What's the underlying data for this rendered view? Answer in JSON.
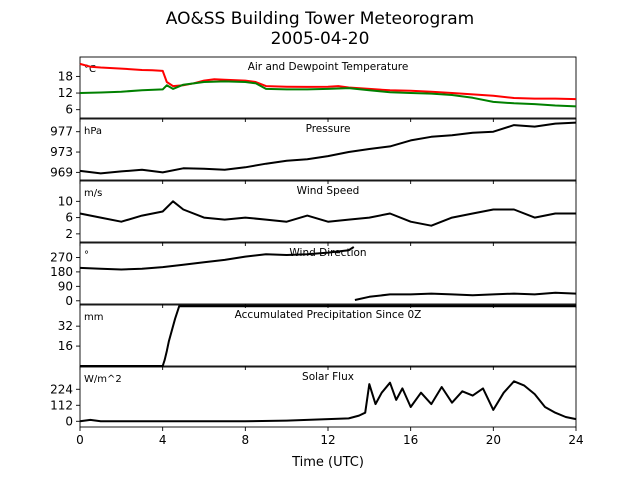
{
  "chart_data": {
    "type": "line",
    "title": "AO&SS Building Tower Meteorogram",
    "subtitle": "2005-04-20",
    "xlabel": "Time (UTC)",
    "xlim": [
      0,
      24
    ],
    "xticks": [
      0,
      4,
      8,
      12,
      16,
      20,
      24
    ],
    "colors": {
      "temperature": "#ff0000",
      "dewpoint": "#008000",
      "default": "#000000"
    },
    "panels": [
      {
        "title": "Air and Dewpoint Temperature",
        "unit": "°C",
        "ylim": [
          3,
          25
        ],
        "yticks": [
          6,
          12,
          18
        ],
        "series": [
          {
            "color": "#ff0000",
            "x": [
              0,
              0.5,
              1,
              2,
              3,
              3.5,
              4,
              4.2,
              4.5,
              5,
              5.5,
              6,
              6.5,
              7,
              8,
              8.5,
              9,
              10,
              11,
              12,
              12.5,
              13,
              14,
              15,
              16,
              17,
              18,
              19,
              20,
              21,
              22,
              23,
              24
            ],
            "y": [
              22.5,
              21.5,
              21.2,
              20.8,
              20.3,
              20.2,
              20.0,
              16.0,
              14.5,
              14.8,
              15.5,
              16.5,
              17.0,
              16.8,
              16.5,
              16.0,
              14.5,
              14.3,
              14.2,
              14.3,
              14.5,
              14.0,
              13.5,
              13.0,
              12.8,
              12.5,
              12.0,
              11.5,
              11.0,
              10.2,
              10.0,
              10.0,
              9.8
            ]
          },
          {
            "color": "#008000",
            "x": [
              0,
              1,
              2,
              3,
              4,
              4.2,
              4.5,
              5,
              6,
              7,
              8,
              8.5,
              9,
              10,
              11,
              12,
              13,
              14,
              15,
              16,
              17,
              18,
              19,
              20,
              21,
              22,
              23,
              24
            ],
            "y": [
              12.0,
              12.2,
              12.5,
              13.0,
              13.3,
              14.8,
              13.5,
              15.0,
              16.0,
              16.2,
              16.0,
              15.5,
              13.5,
              13.3,
              13.3,
              13.5,
              13.8,
              13.0,
              12.3,
              12.0,
              11.8,
              11.3,
              10.3,
              8.8,
              8.3,
              8.0,
              7.5,
              7.2
            ]
          }
        ]
      },
      {
        "title": "Pressure",
        "unit": "hPa",
        "ylim": [
          967.5,
          979.5
        ],
        "yticks": [
          969,
          973,
          977
        ],
        "series": [
          {
            "color": "#000000",
            "x": [
              0,
              1,
              2,
              3,
              4,
              5,
              6,
              7,
              8,
              9,
              10,
              11,
              12,
              13,
              14,
              15,
              16,
              17,
              18,
              19,
              20,
              21,
              22,
              23,
              24
            ],
            "y": [
              969.3,
              968.8,
              969.2,
              969.5,
              969.0,
              969.8,
              969.7,
              969.5,
              970.0,
              970.7,
              971.3,
              971.6,
              972.2,
              973.0,
              973.6,
              974.1,
              975.3,
              976.0,
              976.3,
              976.8,
              977.0,
              978.3,
              978.0,
              978.6,
              978.8
            ]
          }
        ]
      },
      {
        "title": "Wind Speed",
        "unit": "m/s",
        "ylim": [
          0,
          15
        ],
        "yticks": [
          2,
          6,
          10
        ],
        "series": [
          {
            "color": "#000000",
            "x": [
              0,
              1,
              2,
              3,
              4,
              4.5,
              5,
              6,
              7,
              8,
              9,
              10,
              11,
              12,
              13,
              14,
              15,
              16,
              17,
              18,
              19,
              20,
              21,
              22,
              23,
              24
            ],
            "y": [
              7,
              6,
              5,
              6.5,
              7.5,
              10,
              8,
              6,
              5.5,
              6,
              5.5,
              5,
              6.5,
              5,
              5.5,
              6,
              7,
              5,
              4,
              6,
              7,
              8,
              8,
              6,
              7,
              7
            ]
          }
        ]
      },
      {
        "title": "Wind Direction",
        "unit": "°",
        "ylim": [
          -20,
          360
        ],
        "yticks": [
          0,
          90,
          180,
          270
        ],
        "series": [
          {
            "color": "#000000",
            "x": [
              0,
              1,
              2,
              3,
              4,
              5,
              6,
              7,
              8,
              9,
              10,
              11,
              12,
              13,
              13.25
            ],
            "y": [
              205,
              200,
              195,
              200,
              210,
              225,
              240,
              255,
              275,
              290,
              285,
              290,
              300,
              315,
              335
            ]
          },
          {
            "color": "#000000",
            "x": [
              13.3,
              14,
              15,
              16,
              17,
              18,
              19,
              20,
              21,
              22,
              23,
              24
            ],
            "y": [
              5,
              25,
              40,
              40,
              45,
              40,
              35,
              40,
              45,
              40,
              50,
              45
            ]
          }
        ]
      },
      {
        "title": "Accumulated Precipitation Since 0Z",
        "unit": "mm",
        "ylim": [
          0,
          49
        ],
        "yticks": [
          16,
          32
        ],
        "series": [
          {
            "color": "#000000",
            "x": [
              0,
              4,
              4.1,
              4.2,
              4.3,
              4.6,
              4.8,
              24
            ],
            "y": [
              0,
              0,
              5,
              12,
              20,
              38,
              48,
              48
            ]
          }
        ]
      },
      {
        "title": "Solar Flux",
        "unit": "W/m^2",
        "ylim": [
          -40,
          380
        ],
        "yticks": [
          0,
          112,
          224
        ],
        "series": [
          {
            "color": "#000000",
            "x": [
              0,
              0.5,
              1,
              2,
              4,
              6,
              8,
              10,
              11,
              12,
              13,
              13.5,
              13.8,
              14,
              14.3,
              14.6,
              15,
              15.3,
              15.6,
              16,
              16.5,
              17,
              17.5,
              18,
              18.5,
              19,
              19.5,
              20,
              20.5,
              21,
              21.5,
              22,
              22.5,
              23,
              23.5,
              24
            ],
            "y": [
              0,
              10,
              0,
              0,
              0,
              0,
              0,
              5,
              10,
              15,
              20,
              40,
              60,
              260,
              120,
              200,
              270,
              150,
              230,
              100,
              200,
              120,
              240,
              130,
              210,
              180,
              230,
              80,
              200,
              280,
              250,
              190,
              100,
              60,
              30,
              15
            ]
          }
        ]
      }
    ]
  }
}
